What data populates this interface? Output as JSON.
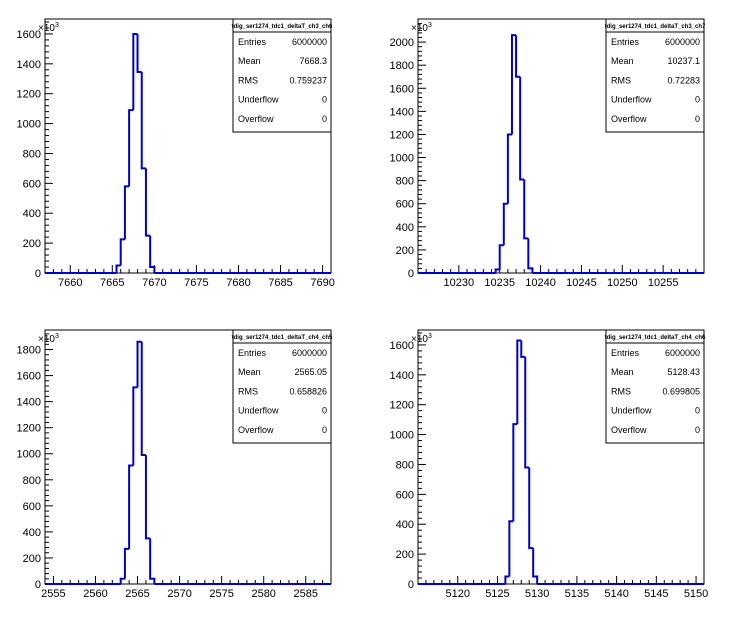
{
  "chart_data": [
    {
      "type": "bar",
      "title": "tdig_ser1274_tdc1_deltaT_ch3_ch6",
      "exponent_label": "×10",
      "exponent_sup": "3",
      "xlim": [
        7657,
        7691
      ],
      "ylim": [
        0,
        1700
      ],
      "xticks": [
        7660,
        7665,
        7670,
        7675,
        7680,
        7685,
        7690
      ],
      "yticks": [
        0,
        200,
        400,
        600,
        800,
        1000,
        1200,
        1400,
        1600
      ],
      "ytick_labels": [
        "0",
        "200",
        "400",
        "600",
        "800",
        "1000",
        "1200",
        "1400",
        "1600"
      ],
      "bin_width": 0.5,
      "bins": [
        {
          "x": 7665.5,
          "y": 50
        },
        {
          "x": 7666.0,
          "y": 225
        },
        {
          "x": 7666.5,
          "y": 580
        },
        {
          "x": 7667.0,
          "y": 1090
        },
        {
          "x": 7667.5,
          "y": 1600
        },
        {
          "x": 7668.0,
          "y": 1345
        },
        {
          "x": 7668.5,
          "y": 700
        },
        {
          "x": 7669.0,
          "y": 250
        },
        {
          "x": 7669.5,
          "y": 40
        }
      ],
      "stats": [
        {
          "label": "Entries",
          "value": "6000000"
        },
        {
          "label": "Mean",
          "value": "7668.3"
        },
        {
          "label": "RMS",
          "value": "0.759237"
        },
        {
          "label": "Underflow",
          "value": "0"
        },
        {
          "label": "Overflow",
          "value": "0"
        }
      ]
    },
    {
      "type": "bar",
      "title": "tdig_ser1274_tdc1_deltaT_ch3_ch7",
      "exponent_label": "×10",
      "exponent_sup": "3",
      "xlim": [
        10225,
        10260
      ],
      "ylim": [
        0,
        2200
      ],
      "xticks": [
        10230,
        10235,
        10240,
        10245,
        10250,
        10255
      ],
      "yticks": [
        0,
        200,
        400,
        600,
        800,
        1000,
        1200,
        1400,
        1600,
        1800,
        2000
      ],
      "ytick_labels": [
        "0",
        "200",
        "400",
        "600",
        "800",
        "1000",
        "1200",
        "1400",
        "1600",
        "1800",
        "2000"
      ],
      "bin_width": 0.5,
      "bins": [
        {
          "x": 10234.5,
          "y": 30
        },
        {
          "x": 10235.0,
          "y": 240
        },
        {
          "x": 10235.5,
          "y": 600
        },
        {
          "x": 10236.0,
          "y": 1200
        },
        {
          "x": 10236.5,
          "y": 2060
        },
        {
          "x": 10237.0,
          "y": 1700
        },
        {
          "x": 10237.5,
          "y": 810
        },
        {
          "x": 10238.0,
          "y": 300
        },
        {
          "x": 10238.5,
          "y": 40
        }
      ],
      "stats": [
        {
          "label": "Entries",
          "value": "6000000"
        },
        {
          "label": "Mean",
          "value": "10237.1"
        },
        {
          "label": "RMS",
          "value": "0.72283"
        },
        {
          "label": "Underflow",
          "value": "0"
        },
        {
          "label": "Overflow",
          "value": "0"
        }
      ]
    },
    {
      "type": "bar",
      "title": "tdig_ser1274_tdc1_deltaT_ch4_ch5",
      "exponent_label": "×10",
      "exponent_sup": "3",
      "xlim": [
        2554,
        2588
      ],
      "ylim": [
        0,
        1950
      ],
      "xticks": [
        2555,
        2560,
        2565,
        2570,
        2575,
        2580,
        2585
      ],
      "yticks": [
        0,
        200,
        400,
        600,
        800,
        1000,
        1200,
        1400,
        1600,
        1800
      ],
      "ytick_labels": [
        "0",
        "200",
        "400",
        "600",
        "800",
        "1000",
        "1200",
        "1400",
        "1600",
        "1800"
      ],
      "bin_width": 0.5,
      "bins": [
        {
          "x": 2563.0,
          "y": 40
        },
        {
          "x": 2563.5,
          "y": 270
        },
        {
          "x": 2564.0,
          "y": 910
        },
        {
          "x": 2564.5,
          "y": 1510
        },
        {
          "x": 2565.0,
          "y": 1860
        },
        {
          "x": 2565.5,
          "y": 990
        },
        {
          "x": 2566.0,
          "y": 350
        },
        {
          "x": 2566.5,
          "y": 40
        }
      ],
      "stats": [
        {
          "label": "Entries",
          "value": "6000000"
        },
        {
          "label": "Mean",
          "value": "2565.05"
        },
        {
          "label": "RMS",
          "value": "0.658826"
        },
        {
          "label": "Underflow",
          "value": "0"
        },
        {
          "label": "Overflow",
          "value": "0"
        }
      ]
    },
    {
      "type": "bar",
      "title": "tdig_ser1274_tdc1_deltaT_ch4_ch6",
      "exponent_label": "×10",
      "exponent_sup": "3",
      "xlim": [
        5115,
        5151
      ],
      "ylim": [
        0,
        1700
      ],
      "xticks": [
        5120,
        5125,
        5130,
        5135,
        5140,
        5145,
        5150
      ],
      "yticks": [
        0,
        200,
        400,
        600,
        800,
        1000,
        1200,
        1400,
        1600
      ],
      "ytick_labels": [
        "0",
        "200",
        "400",
        "600",
        "800",
        "1000",
        "1200",
        "1400",
        "1600"
      ],
      "bin_width": 0.5,
      "bins": [
        {
          "x": 5126.0,
          "y": 50
        },
        {
          "x": 5126.5,
          "y": 420
        },
        {
          "x": 5127.0,
          "y": 1070
        },
        {
          "x": 5127.5,
          "y": 1630
        },
        {
          "x": 5128.0,
          "y": 1520
        },
        {
          "x": 5128.5,
          "y": 780
        },
        {
          "x": 5129.0,
          "y": 240
        },
        {
          "x": 5129.5,
          "y": 50
        }
      ],
      "stats": [
        {
          "label": "Entries",
          "value": "6000000"
        },
        {
          "label": "Mean",
          "value": "5128.43"
        },
        {
          "label": "RMS",
          "value": "0.699805"
        },
        {
          "label": "Underflow",
          "value": "0"
        },
        {
          "label": "Overflow",
          "value": "0"
        }
      ]
    }
  ],
  "colors": {
    "histogram_line": "#0000cc",
    "axis": "#000000",
    "background": "#ffffff"
  }
}
